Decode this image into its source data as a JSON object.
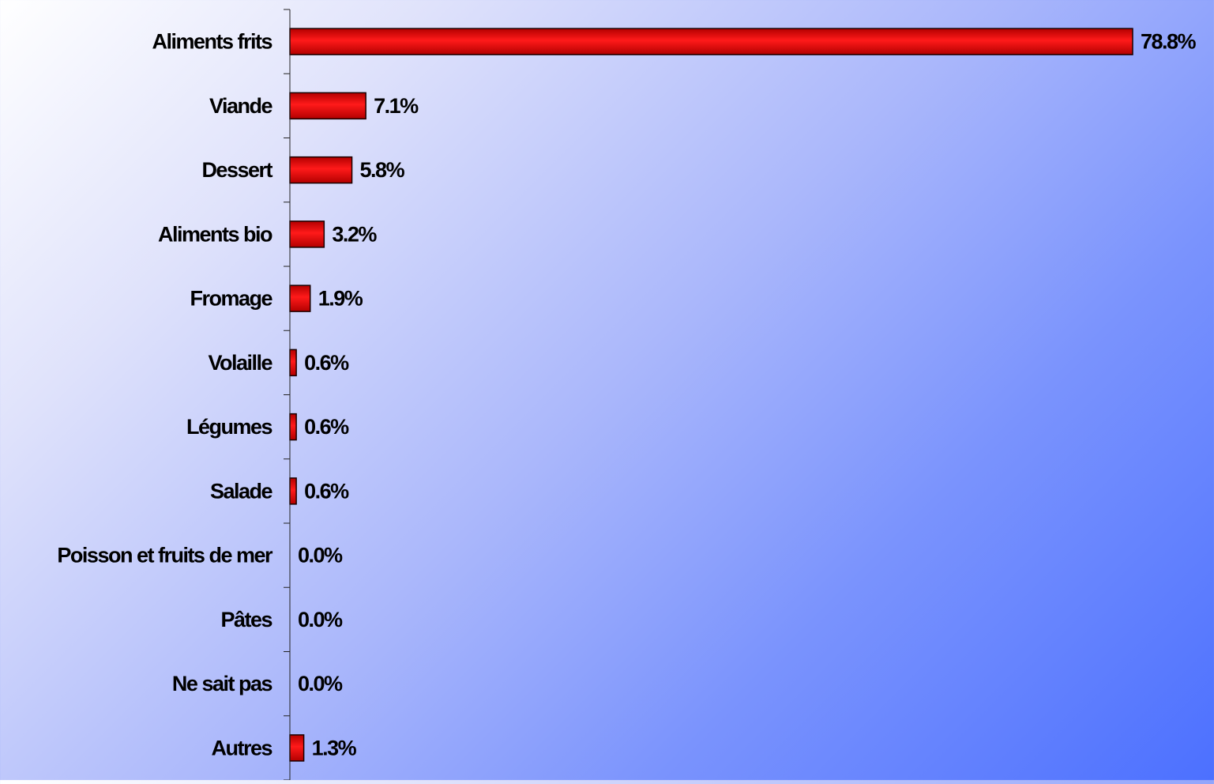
{
  "chart_data": {
    "type": "bar",
    "orientation": "horizontal",
    "categories": [
      "Aliments frits",
      "Viande",
      "Dessert",
      "Aliments bio",
      "Fromage",
      "Volaille",
      "Légumes",
      "Salade",
      "Poisson et fruits de mer",
      "Pâtes",
      "Ne sait pas",
      "Autres"
    ],
    "values": [
      78.8,
      7.1,
      5.8,
      3.2,
      1.9,
      0.6,
      0.6,
      0.6,
      0.0,
      0.0,
      0.0,
      1.3
    ],
    "value_labels": [
      "78.8%",
      "7.1%",
      "5.8%",
      "3.2%",
      "1.9%",
      "0.6%",
      "0.6%",
      "0.6%",
      "0.0%",
      "0.0%",
      "0.0%",
      "1.3%"
    ],
    "title": "",
    "xlabel": "",
    "ylabel": "",
    "xlim": [
      0,
      78.8
    ],
    "grid": false,
    "legend": "none",
    "colors": {
      "bar_dark": "#b30000",
      "bar_light": "#ff1a1a",
      "bar_outline": "#1a0000",
      "axis": "#222222"
    }
  }
}
